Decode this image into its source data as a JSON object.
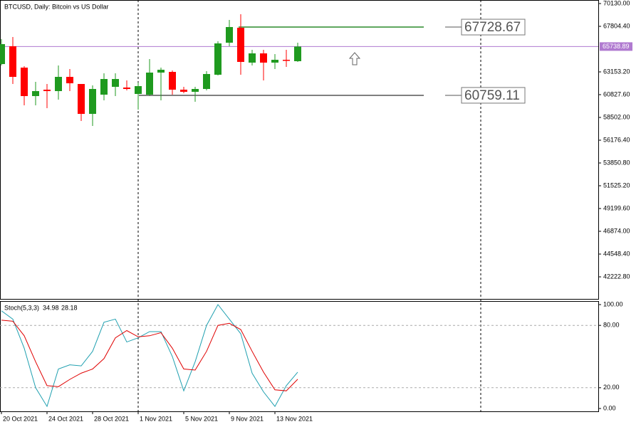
{
  "chart_data": [
    {
      "type": "candlestick",
      "title": "BTCUSD, Daily:  Bitcoin vs US Dollar",
      "open": [
        63952,
        65769,
        63589,
        60682,
        61336,
        61190,
        62644,
        61917,
        58865,
        60827,
        61626,
        61554,
        60900,
        60827,
        63080,
        63153,
        61336,
        61118,
        61408,
        62862,
        66133,
        67659,
        64098,
        65042,
        64098,
        64388,
        64243
      ],
      "high": [
        66496,
        66714,
        63734,
        62135,
        61917,
        63807,
        63444,
        61917,
        61772,
        63007,
        63007,
        62281,
        62063,
        64461,
        63589,
        63298,
        61626,
        61626,
        63225,
        66278,
        68458,
        69040,
        65405,
        65405,
        64970,
        65405,
        66133
      ],
      "low": [
        63807,
        61917,
        59737,
        59737,
        59446,
        60319,
        61190,
        58138,
        57629,
        60246,
        60682,
        61263,
        59301,
        60682,
        60246,
        60827,
        60972,
        60100,
        61263,
        62789,
        65769,
        62862,
        63807,
        62281,
        63444,
        63662,
        64170
      ],
      "close": [
        65987,
        62644,
        60682,
        61190,
        61190,
        62644,
        61990,
        58865,
        61408,
        62426,
        62426,
        61408,
        61699,
        63080,
        63371,
        61336,
        61118,
        61408,
        62935,
        66060,
        67732,
        64170,
        65042,
        64098,
        64388,
        64316,
        65738.89
      ],
      "up_color": "#1f9a1f",
      "down_color": "#ff0000",
      "ylim": [
        39970,
        70493
      ],
      "yticks": [
        {
          "value": 70130,
          "label": "70130.00"
        },
        {
          "value": 67804.4,
          "label": "67804.40"
        },
        {
          "value": 63153.2,
          "label": "63153.20"
        },
        {
          "value": 60827.6,
          "label": "60827.60"
        },
        {
          "value": 58502,
          "label": "58502.00"
        },
        {
          "value": 56176.4,
          "label": "56176.40"
        },
        {
          "value": 53850.8,
          "label": "53850.80"
        },
        {
          "value": 51525.2,
          "label": "51525.20"
        },
        {
          "value": 49199.6,
          "label": "49199.60"
        },
        {
          "value": 46874,
          "label": "46874.00"
        },
        {
          "value": 44548.4,
          "label": "44548.40"
        },
        {
          "value": 42222.8,
          "label": "42222.80"
        }
      ],
      "levels": [
        {
          "value": 67728.67,
          "color": "#2a8a2a"
        },
        {
          "value": 60759.11,
          "color": "#555555"
        }
      ],
      "last_price": {
        "value": 65738.89,
        "color": "#b07ad0"
      }
    },
    {
      "type": "line",
      "title": "Stoch(5,3,3)",
      "categories": [
        "20 Oct 2021",
        null,
        null,
        null,
        "24 Oct 2021",
        null,
        null,
        null,
        "28 Oct 2021",
        null,
        null,
        null,
        "1 Nov 2021",
        null,
        null,
        null,
        "5 Nov 2021",
        null,
        null,
        null,
        "9 Nov 2021",
        null,
        null,
        null,
        "13 Nov 2021",
        null,
        null
      ],
      "series": [
        {
          "color": "#20a0b0",
          "values": [
            94,
            86,
            58,
            20,
            2,
            38,
            42,
            41,
            55,
            83,
            86,
            64,
            68,
            74,
            74,
            50,
            17,
            45,
            80,
            100,
            86,
            72,
            34,
            16,
            2,
            22,
            34.98
          ]
        },
        {
          "color": "#e00000",
          "values": [
            85,
            84,
            70,
            45,
            22,
            21,
            28,
            34,
            38,
            48,
            68,
            75,
            69,
            70,
            73,
            58,
            38,
            37,
            55,
            80,
            82,
            76,
            55,
            35,
            18,
            17,
            28.18
          ]
        }
      ],
      "ylim": [
        -2.74,
        102.74
      ],
      "yticks": [
        {
          "value": 100,
          "label": "100.00"
        },
        {
          "value": 80,
          "label": "80.00"
        },
        {
          "value": 20,
          "label": "20.00"
        },
        {
          "value": 0,
          "label": "0.00"
        }
      ]
    }
  ]
}
